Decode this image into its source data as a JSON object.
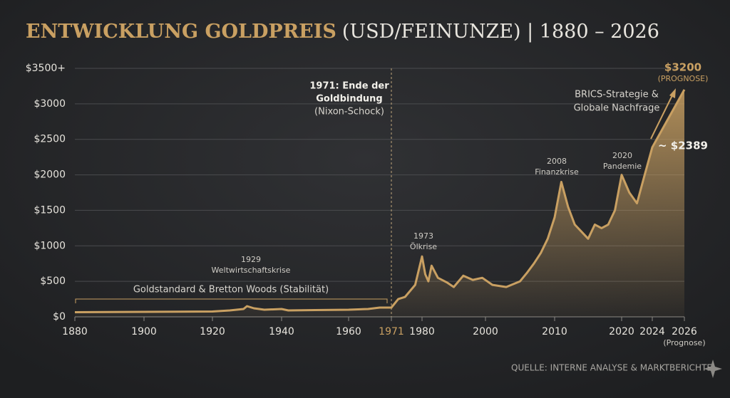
{
  "chart_data": {
    "type": "area",
    "title": "ENTWICKLUNG GOLDPREIS",
    "subtitle": "(USD/FEINUNZE) | 1880 – 2026",
    "source": "QUELLE: INTERNE ANALYSE & MARKTBERICHTE",
    "x_note": "(Prognose)",
    "color": "#c9a062",
    "x": [
      1880,
      1900,
      1920,
      1925,
      1929,
      1930,
      1932,
      1935,
      1940,
      1942,
      1950,
      1960,
      1965,
      1968,
      1971,
      1973,
      1975,
      1978,
      1980,
      1981,
      1982,
      1983,
      1985,
      1988,
      1990,
      1993,
      1996,
      1999,
      2001,
      2003,
      2005,
      2006,
      2007,
      2008,
      2009,
      2010,
      2011,
      2012,
      2013,
      2014,
      2015,
      2016,
      2017,
      2018,
      2019,
      2020,
      2021,
      2022,
      2023,
      2024,
      2026
    ],
    "values": [
      65,
      70,
      75,
      90,
      110,
      150,
      120,
      100,
      110,
      90,
      95,
      100,
      110,
      130,
      130,
      250,
      280,
      450,
      850,
      600,
      500,
      720,
      550,
      480,
      420,
      580,
      520,
      550,
      450,
      420,
      500,
      620,
      750,
      900,
      1100,
      1400,
      1900,
      1550,
      1300,
      1200,
      1100,
      1300,
      1250,
      1300,
      1500,
      2000,
      1750,
      1600,
      2000,
      2389,
      3200
    ],
    "value_labels": [
      null,
      null,
      null,
      null,
      null,
      null,
      null,
      null,
      null,
      null,
      null,
      null,
      null,
      null,
      null,
      null,
      null,
      null,
      null,
      null,
      null,
      null,
      null,
      null,
      null,
      null,
      null,
      null,
      null,
      null,
      null,
      null,
      null,
      null,
      null,
      null,
      null,
      null,
      null,
      null,
      null,
      null,
      null,
      null,
      null,
      null,
      null,
      null,
      null,
      "~ $2389",
      "$3200"
    ],
    "annotations": [
      "1971: Ende der",
      "Goldbindung",
      "(Nixon-Schock)",
      "1929",
      "Weltwirtschaftskrise",
      "Goldstandard & Bretton Woods (Stabilität)",
      "1973",
      "Ölkrise",
      "2008",
      "Finanzkrise",
      "2020",
      "Pandemie",
      "BRICS-Strategie &",
      "Globale Nachfrage",
      "(PROGNOSE)"
    ],
    "xlim": [
      1880,
      2026
    ],
    "xticks": [
      1880,
      1900,
      1920,
      1940,
      1960,
      1971,
      1980,
      2000,
      2010,
      2020,
      2024,
      2026
    ],
    "ylim": [
      0,
      3500
    ],
    "yticks": [
      {
        "value": 0,
        "label": "$0"
      },
      {
        "value": 500,
        "label": "$500"
      },
      {
        "value": 1000,
        "label": "$1000"
      },
      {
        "value": 1500,
        "label": "$1500"
      },
      {
        "value": 2000,
        "label": "$2000"
      },
      {
        "value": 2500,
        "label": "$2500"
      },
      {
        "value": 3000,
        "label": "$3000"
      },
      {
        "value": 3500,
        "label": "$3500+"
      }
    ],
    "grid": true
  }
}
